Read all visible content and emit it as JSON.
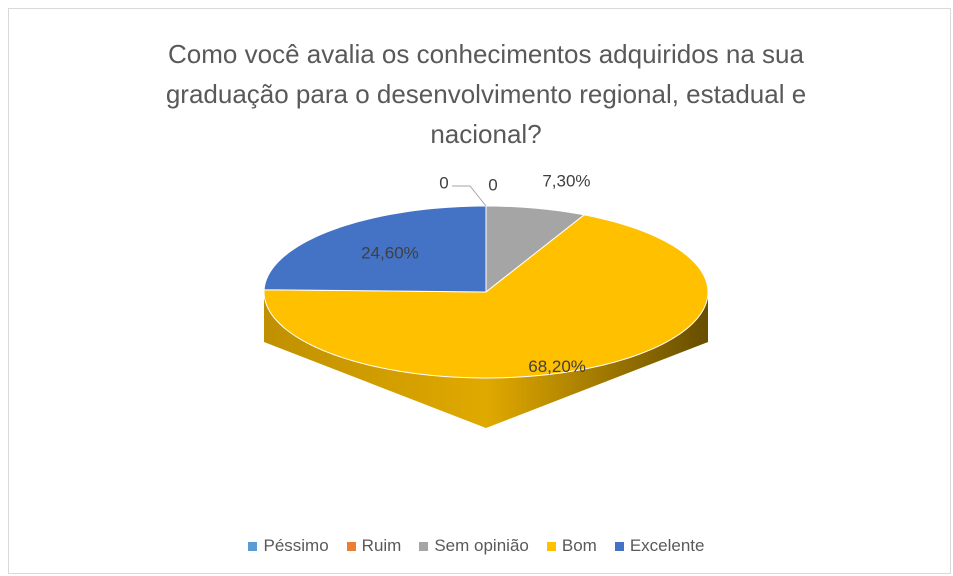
{
  "chart_data": {
    "type": "pie",
    "title": "Como você avalia os conhecimentos adquiridos na sua graduação para o desenvolvimento regional, estadual e nacional?",
    "categories": [
      "Péssimo",
      "Ruim",
      "Sem opinião",
      "Bom",
      "Excelente"
    ],
    "values": [
      0,
      0,
      7.3,
      68.2,
      24.6
    ],
    "value_labels": [
      "0",
      "0",
      "7,30%",
      "68,20%",
      "24,60%"
    ],
    "colors": [
      "#5b9bd5",
      "#ed7d31",
      "#a5a5a5",
      "#ffc000",
      "#4472c4"
    ],
    "legend": "bottom"
  }
}
